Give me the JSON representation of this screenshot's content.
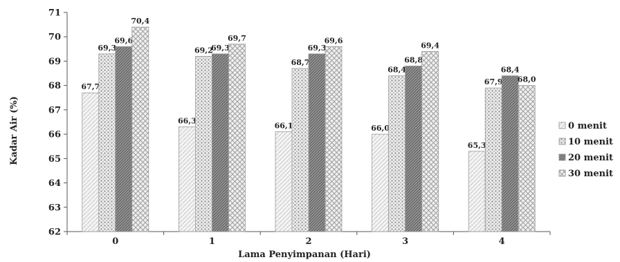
{
  "chart_data": {
    "type": "bar",
    "title": "",
    "xlabel": "Lama Penyimpanan (Hari)",
    "ylabel": "Kadar Air (%)",
    "ylim": [
      62,
      71
    ],
    "yticks": [
      62,
      63,
      64,
      65,
      66,
      67,
      68,
      69,
      70,
      71
    ],
    "categories": [
      "0",
      "1",
      "2",
      "3",
      "4"
    ],
    "series": [
      {
        "name": "0 menit",
        "values": [
          67.7,
          66.3,
          66.1,
          66.0,
          65.3
        ],
        "labels": [
          "67,7",
          "66,3",
          "66,1",
          "66,0",
          "65,3"
        ],
        "pattern": "light"
      },
      {
        "name": "10 menit",
        "values": [
          69.3,
          69.2,
          68.7,
          68.4,
          67.9
        ],
        "labels": [
          "69,3",
          "69,2",
          "68,7",
          "68,4",
          "67,9"
        ],
        "pattern": "dots"
      },
      {
        "name": "20 menit",
        "values": [
          69.6,
          69.3,
          69.3,
          68.8,
          68.4
        ],
        "labels": [
          "69,6",
          "69,3",
          "69,3",
          "68,8",
          "68,4"
        ],
        "pattern": "dense"
      },
      {
        "name": "30 menit",
        "values": [
          70.4,
          69.7,
          69.6,
          69.4,
          68.0
        ],
        "labels": [
          "70,4",
          "69,7",
          "69,6",
          "69,4",
          "68,0"
        ],
        "pattern": "cross"
      }
    ],
    "grid": false,
    "legend": "right"
  }
}
